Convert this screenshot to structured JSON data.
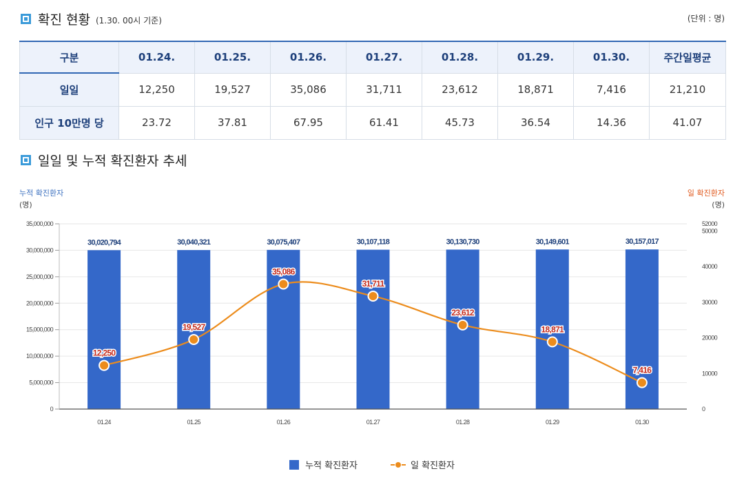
{
  "header": {
    "title": "확진 현황",
    "subtitle": "(1.30. 00시 기준)",
    "unit": "(단위 : 명)"
  },
  "table": {
    "columns": [
      "구분",
      "01.24.",
      "01.25.",
      "01.26.",
      "01.27.",
      "01.28.",
      "01.29.",
      "01.30.",
      "주간일평균"
    ],
    "rows": [
      {
        "label": "일일",
        "values": [
          "12,250",
          "19,527",
          "35,086",
          "31,711",
          "23,612",
          "18,871",
          "7,416",
          "21,210"
        ]
      },
      {
        "label": "인구 10만명 당",
        "values": [
          "23.72",
          "37.81",
          "67.95",
          "61.41",
          "45.73",
          "36.54",
          "14.36",
          "41.07"
        ]
      }
    ]
  },
  "chart_section": {
    "title": "일일 및 누적 확진환자 추세",
    "left_axis_title": "누적 확진환자",
    "left_axis_unit": "(명)",
    "right_axis_title": "일 확진환자",
    "right_axis_unit": "(명)"
  },
  "colors": {
    "bar": "#3468c9",
    "line": "#ec8c1c",
    "bar_label": "#1d3f7a",
    "line_label": "#c42b1c",
    "accent": "#3a9ad9"
  },
  "chart_data": {
    "type": "bar",
    "title": "일일 및 누적 확진환자 추세",
    "categories": [
      "01.24",
      "01.25",
      "01.26",
      "01.27",
      "01.28",
      "01.29",
      "01.30"
    ],
    "series": [
      {
        "name": "누적 확진환자",
        "type": "bar",
        "axis": "left",
        "values": [
          30020794,
          30040321,
          30075407,
          30107118,
          30130730,
          30149601,
          30157017
        ],
        "labels": [
          "30,020,794",
          "30,040,321",
          "30,075,407",
          "30,107,118",
          "30,130,730",
          "30,149,601",
          "30,157,017"
        ]
      },
      {
        "name": "일 확진환자",
        "type": "line",
        "axis": "right",
        "values": [
          12250,
          19527,
          35086,
          31711,
          23612,
          18871,
          7416
        ],
        "labels": [
          "12,250",
          "19,527",
          "35,086",
          "31,711",
          "23,612",
          "18,871",
          "7,416"
        ]
      }
    ],
    "left_axis": {
      "ylim": [
        0,
        35000000
      ],
      "ticks": [
        "0",
        "5,000,000",
        "10,000,000",
        "15,000,000",
        "20,000,000",
        "25,000,000",
        "30,000,000",
        "35,000,000"
      ]
    },
    "right_axis": {
      "ylim": [
        0,
        52000
      ],
      "tick_values": [
        0,
        10000,
        20000,
        30000,
        40000,
        50000,
        52000
      ],
      "ticks": [
        "0",
        "10000",
        "20000",
        "30000",
        "40000",
        "50000",
        "52000"
      ]
    },
    "xlabel": "",
    "ylabel": "누적 확진환자",
    "y2label": "일 확진환자",
    "legend": [
      "누적 확진환자",
      "일 확진환자"
    ],
    "legend_position": "bottom-center",
    "grid": true
  }
}
